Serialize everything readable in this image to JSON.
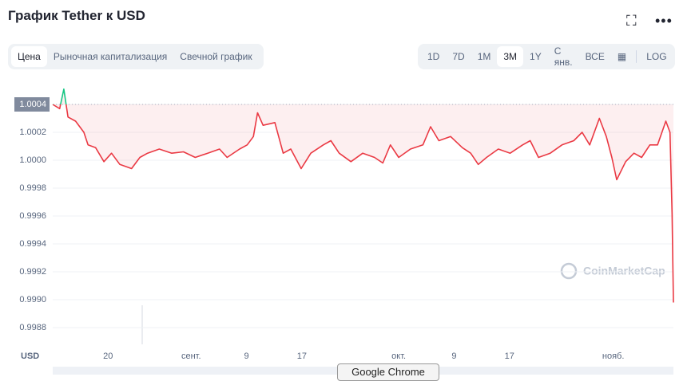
{
  "header": {
    "title": "График Tether к USD",
    "tabs": [
      "Цена",
      "Рыночная капитализация",
      "Свечной график"
    ],
    "ranges": [
      "1D",
      "7D",
      "1M",
      "3M",
      "1Y",
      "С янв.",
      "ВСЕ"
    ],
    "log_button": "LOG"
  },
  "watermark": "CoinMarketCap",
  "overlay": "Google Chrome",
  "chart_data": {
    "type": "line",
    "y_label": "USD",
    "series": [
      {
        "name": "Tether",
        "color": "#ea3943",
        "x": [
          0,
          1.0,
          1.6,
          2.2,
          3.3,
          4.5,
          5.1,
          6.2,
          7.4,
          8.5,
          9.7,
          11.4,
          12.6,
          13.7,
          15.4,
          17.2,
          18.9,
          20.6,
          22.4,
          24.1,
          25.2,
          27.0,
          28.1,
          29.0,
          29.6,
          30.4,
          32.1,
          33.3,
          34.4,
          35.9,
          37.3,
          39.1,
          40.2,
          41.4,
          43.1,
          44.8,
          46.5,
          47.7,
          48.8,
          50.0,
          51.7,
          53.5,
          54.6,
          55.8,
          57.5,
          59.2,
          60.4,
          61.5,
          62.7,
          64.4,
          66.1,
          67.9,
          69.0,
          70.2,
          71.9,
          73.6,
          75.3,
          76.5,
          77.6,
          79.0,
          80.0,
          80.8,
          81.5,
          82.8,
          84.0,
          85.1,
          86.3,
          87.4,
          88.6,
          89.2,
          89.5,
          89.7
        ],
        "values": [
          1.0004,
          1.00037,
          1.00051,
          1.00031,
          1.00028,
          1.0002,
          1.00011,
          1.00009,
          0.99999,
          1.00005,
          0.99997,
          0.99994,
          1.00002,
          1.00005,
          1.00008,
          1.00005,
          1.00006,
          1.00002,
          1.00005,
          1.00008,
          1.00002,
          1.00008,
          1.00011,
          1.00017,
          1.00034,
          1.00025,
          1.00027,
          1.00005,
          1.00008,
          0.99994,
          1.00005,
          1.00011,
          1.00014,
          1.00005,
          0.99999,
          1.00005,
          1.00002,
          0.99998,
          1.00011,
          1.00002,
          1.00008,
          1.00011,
          1.00024,
          1.00014,
          1.00017,
          1.00009,
          1.00005,
          0.99997,
          1.00002,
          1.00008,
          1.00005,
          1.00011,
          1.00014,
          1.00002,
          1.00005,
          1.00011,
          1.00014,
          1.0002,
          1.00011,
          1.0003,
          1.00017,
          1.00002,
          0.99986,
          0.99999,
          1.00005,
          1.00002,
          1.00011,
          1.00011,
          1.00028,
          1.0002,
          0.99962,
          0.99898
        ]
      }
    ],
    "up_color": "#16c784",
    "xlim": [
      0,
      89.7
    ],
    "xticks": [
      {
        "value": 8,
        "label": "20"
      },
      {
        "value": 20,
        "label": "сент."
      },
      {
        "value": 28,
        "label": "9"
      },
      {
        "value": 36,
        "label": "17"
      },
      {
        "value": 50,
        "label": "окт."
      },
      {
        "value": 58,
        "label": "9"
      },
      {
        "value": 66,
        "label": "17"
      },
      {
        "value": 81,
        "label": "нояб."
      }
    ],
    "ylim": [
      0.99872,
      1.00052
    ],
    "yticks": [
      {
        "value": 0.9988,
        "label": "0.9988"
      },
      {
        "value": 0.999,
        "label": "0.9990"
      },
      {
        "value": 0.9992,
        "label": "0.9992"
      },
      {
        "value": 0.9994,
        "label": "0.9994"
      },
      {
        "value": 0.9996,
        "label": "0.9996"
      },
      {
        "value": 0.9998,
        "label": "0.9998"
      },
      {
        "value": 1.0,
        "label": "1.0000"
      },
      {
        "value": 1.0002,
        "label": "1.0002"
      },
      {
        "value": 1.0004,
        "label": "1.0004"
      }
    ],
    "grid": true
  }
}
